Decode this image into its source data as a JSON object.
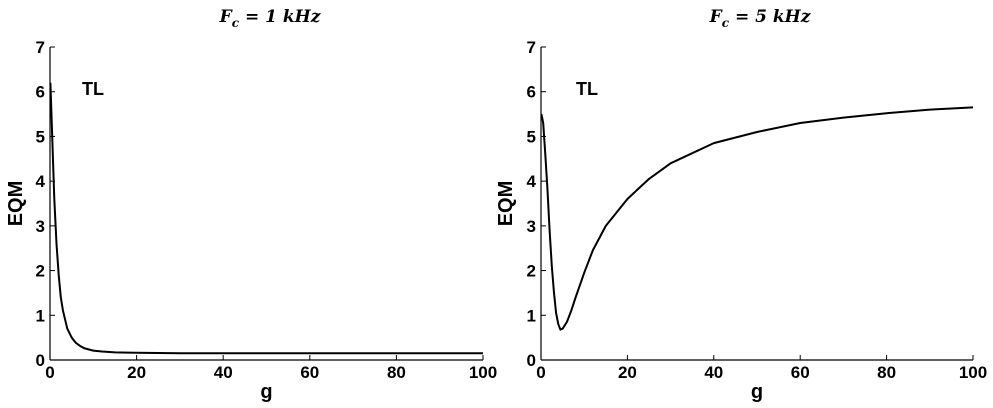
{
  "chart_data": [
    {
      "type": "line",
      "title": "F_c = 1 kHz",
      "title_main": "F",
      "title_sub": "c",
      "title_rest": " = 1 kHz",
      "xlabel": "g",
      "ylabel": "EQM",
      "annotation": "TL",
      "xlim": [
        0,
        100
      ],
      "ylim": [
        0,
        7
      ],
      "xticks": [
        0,
        20,
        40,
        60,
        80,
        100
      ],
      "yticks": [
        0,
        1,
        2,
        3,
        4,
        5,
        6,
        7
      ],
      "grid": false,
      "line_color": "#000000",
      "series": [
        {
          "x": [
            0.1,
            0.5,
            1,
            1.5,
            2,
            2.5,
            3,
            4,
            5,
            6,
            7,
            8,
            10,
            12,
            15,
            20,
            30,
            40,
            50,
            60,
            70,
            80,
            90,
            100
          ],
          "y": [
            6.2,
            5.0,
            3.6,
            2.6,
            1.9,
            1.4,
            1.1,
            0.7,
            0.5,
            0.38,
            0.31,
            0.26,
            0.21,
            0.19,
            0.17,
            0.16,
            0.15,
            0.15,
            0.15,
            0.15,
            0.15,
            0.15,
            0.15,
            0.15
          ]
        }
      ]
    },
    {
      "type": "line",
      "title": "F_c = 5 kHz",
      "title_main": "F",
      "title_sub": "c",
      "title_rest": " = 5 kHz",
      "xlabel": "g",
      "ylabel": "EQM",
      "annotation": "TL",
      "xlim": [
        0,
        100
      ],
      "ylim": [
        0,
        7
      ],
      "xticks": [
        0,
        20,
        40,
        60,
        80,
        100
      ],
      "yticks": [
        0,
        1,
        2,
        3,
        4,
        5,
        6,
        7
      ],
      "grid": false,
      "line_color": "#000000",
      "series": [
        {
          "x": [
            0.1,
            0.5,
            1,
            1.5,
            2,
            2.5,
            3,
            3.5,
            4,
            4.5,
            5,
            6,
            7,
            8,
            10,
            12,
            15,
            20,
            25,
            30,
            40,
            50,
            60,
            70,
            80,
            90,
            100
          ],
          "y": [
            5.5,
            5.3,
            4.6,
            3.8,
            2.9,
            2.1,
            1.5,
            1.05,
            0.8,
            0.68,
            0.7,
            0.85,
            1.1,
            1.4,
            1.95,
            2.45,
            3.0,
            3.6,
            4.05,
            4.4,
            4.85,
            5.1,
            5.3,
            5.42,
            5.52,
            5.6,
            5.65
          ]
        }
      ]
    }
  ]
}
